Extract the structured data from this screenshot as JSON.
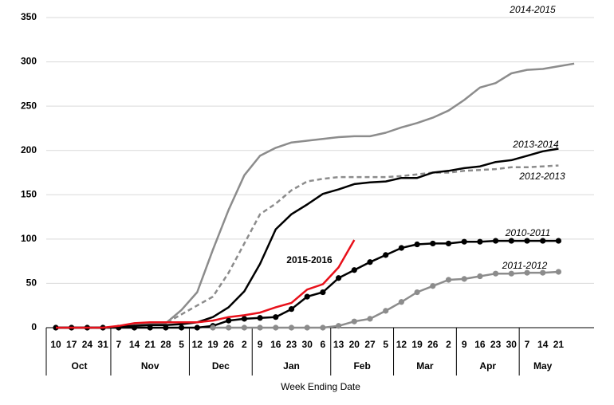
{
  "chart_data": {
    "type": "line",
    "x_title": "Week Ending Date",
    "categories": [
      "10",
      "17",
      "24",
      "31",
      "7",
      "14",
      "21",
      "28",
      "5",
      "12",
      "19",
      "26",
      "2",
      "9",
      "16",
      "23",
      "30",
      "6",
      "13",
      "20",
      "27",
      "5",
      "12",
      "19",
      "26",
      "2",
      "9",
      "16",
      "23",
      "30",
      "7",
      "14",
      "21",
      null
    ],
    "x_groups": [
      {
        "label": "Oct",
        "count": 4
      },
      {
        "label": "Nov",
        "count": 5
      },
      {
        "label": "Dec",
        "count": 4
      },
      {
        "label": "Jan",
        "count": 5
      },
      {
        "label": "Feb",
        "count": 4
      },
      {
        "label": "Mar",
        "count": 4
      },
      {
        "label": "Apr",
        "count": 4
      },
      {
        "label": "May",
        "count": 3
      }
    ],
    "ylim": [
      0,
      350
    ],
    "yticks": [
      0,
      50,
      100,
      150,
      200,
      250,
      300,
      350
    ],
    "grid": true,
    "series": [
      {
        "name": "2014-2015",
        "color": "#8c8c8c",
        "dash": false,
        "markers": false,
        "bold_label": false,
        "values": [
          0,
          0,
          0,
          0,
          1,
          3,
          4,
          5,
          20,
          40,
          88,
          133,
          172,
          194,
          203,
          209,
          211,
          213,
          215,
          216,
          216,
          220,
          226,
          231,
          237,
          245,
          257,
          271,
          276,
          287,
          291,
          292,
          295,
          298
        ]
      },
      {
        "name": "2012-2013",
        "color": "#8c8c8c",
        "dash": true,
        "markers": false,
        "bold_label": false,
        "values": [
          0,
          0,
          0,
          0,
          1,
          2,
          3,
          5,
          15,
          25,
          35,
          62,
          95,
          128,
          140,
          155,
          165,
          168,
          170,
          170,
          170,
          170,
          171,
          173,
          175,
          175,
          177,
          178,
          179,
          181,
          181,
          182,
          183,
          null
        ]
      },
      {
        "name": "2013-2014",
        "color": "#000000",
        "dash": false,
        "markers": false,
        "bold_label": false,
        "values": [
          0,
          0,
          0,
          0,
          1,
          2,
          3,
          3,
          4,
          6,
          12,
          23,
          41,
          72,
          111,
          128,
          139,
          151,
          156,
          162,
          164,
          165,
          169,
          169,
          175,
          177,
          180,
          182,
          187,
          189,
          194,
          199,
          202,
          null
        ]
      },
      {
        "name": "2010-2011",
        "color": "#000000",
        "dash": false,
        "markers": true,
        "bold_label": false,
        "values": [
          0,
          0,
          0,
          0,
          0,
          0,
          0,
          0,
          0,
          0,
          2,
          8,
          10,
          11,
          12,
          21,
          35,
          40,
          56,
          65,
          74,
          82,
          90,
          94,
          95,
          95,
          97,
          97,
          98,
          98,
          98,
          98,
          98,
          null
        ]
      },
      {
        "name": "2011-2012",
        "color": "#8c8c8c",
        "dash": false,
        "markers": true,
        "bold_label": false,
        "values": [
          null,
          null,
          null,
          null,
          null,
          null,
          null,
          null,
          null,
          null,
          0,
          0,
          0,
          0,
          0,
          0,
          0,
          0,
          2,
          7,
          10,
          19,
          29,
          40,
          47,
          54,
          55,
          58,
          61,
          61,
          62,
          62,
          63,
          null
        ]
      },
      {
        "name": "2015-2016",
        "color": "#e8101a",
        "dash": false,
        "markers": false,
        "bold_label": true,
        "values": [
          0,
          0,
          0,
          0,
          2,
          5,
          6,
          6,
          6,
          6,
          8,
          12,
          14,
          17,
          23,
          28,
          43,
          49,
          68,
          99,
          null,
          null,
          null,
          null,
          null,
          null,
          null,
          null,
          null,
          null,
          null,
          null,
          null,
          null
        ]
      }
    ]
  }
}
